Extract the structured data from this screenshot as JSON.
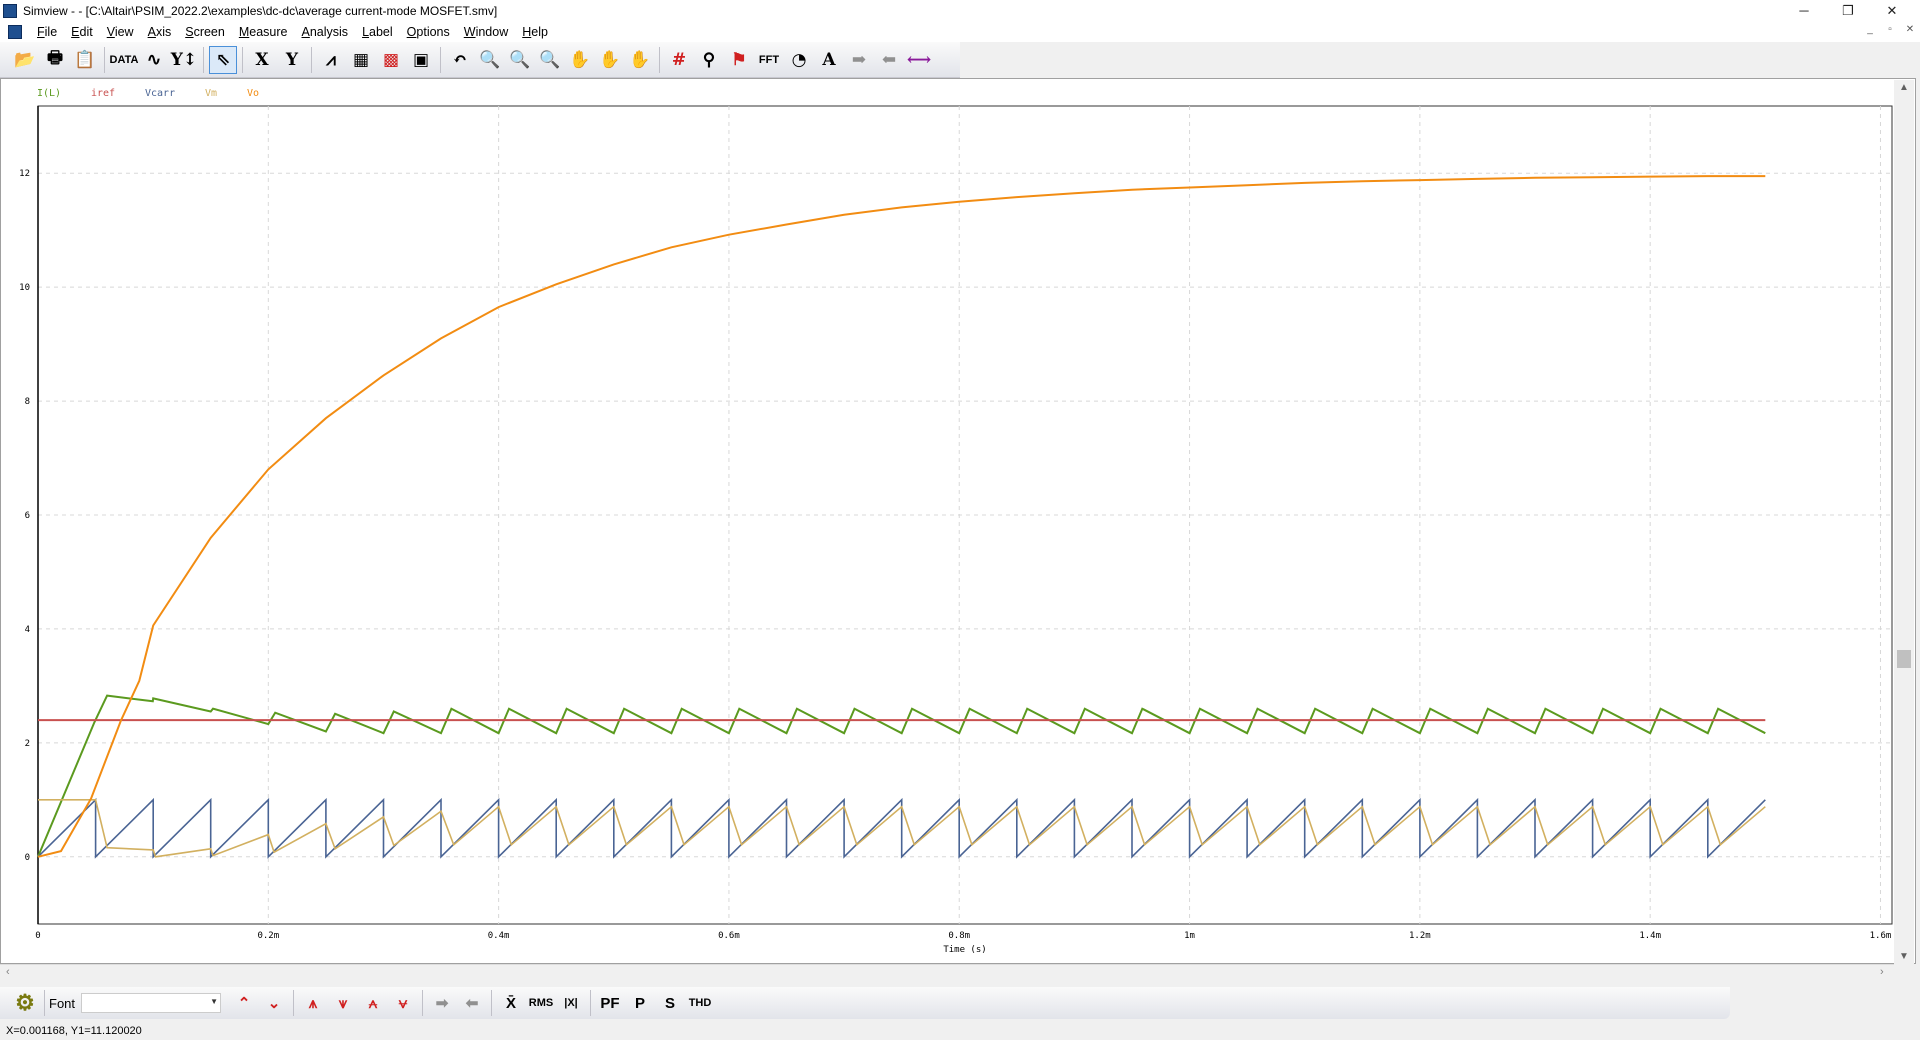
{
  "window": {
    "title": "Simview -  - [C:\\Altair\\PSIM_2022.2\\examples\\dc-dc\\average current-mode MOSFET.smv]",
    "minimize": "─",
    "restore": "❐",
    "close": "✕"
  },
  "menu": [
    "File",
    "Edit",
    "View",
    "Axis",
    "Screen",
    "Measure",
    "Analysis",
    "Label",
    "Options",
    "Window",
    "Help"
  ],
  "toolbar": [
    {
      "icon": "open-folder-icon",
      "glyph": "📂"
    },
    {
      "icon": "print-icon",
      "glyph": "🖶"
    },
    {
      "icon": "copy-clipboard-icon",
      "glyph": "📋"
    },
    {
      "sep": true
    },
    {
      "icon": "data-icon",
      "glyph": "DATA"
    },
    {
      "icon": "add-curve-icon",
      "glyph": "∿"
    },
    {
      "icon": "y-axis-range-icon",
      "glyph": "Y↕"
    },
    {
      "sep": true
    },
    {
      "icon": "select-pointer-icon",
      "glyph": "⇖",
      "selected": true
    },
    {
      "sep": true
    },
    {
      "icon": "x-axis-icon",
      "glyph": "X"
    },
    {
      "icon": "y-axis-icon",
      "glyph": "Y"
    },
    {
      "sep": true
    },
    {
      "icon": "fft-curve-icon",
      "glyph": "⩘"
    },
    {
      "icon": "add-screen-icon",
      "glyph": "▦"
    },
    {
      "icon": "screen-grid-icon",
      "glyph": "▩"
    },
    {
      "icon": "screen-copy-icon",
      "glyph": "▣"
    },
    {
      "sep": true
    },
    {
      "icon": "undo-icon",
      "glyph": "↶"
    },
    {
      "icon": "zoom-icon",
      "glyph": "🔍"
    },
    {
      "icon": "zoom-in-icon",
      "glyph": "🔍"
    },
    {
      "icon": "zoom-out-icon",
      "glyph": "🔍"
    },
    {
      "icon": "pan-hand-icon",
      "glyph": "✋"
    },
    {
      "icon": "pan-hand-vertical-icon",
      "glyph": "✋"
    },
    {
      "icon": "hand-icon",
      "glyph": "✋"
    },
    {
      "sep": true
    },
    {
      "icon": "grid-icon",
      "glyph": "#"
    },
    {
      "icon": "measure-icon",
      "glyph": "⚲"
    },
    {
      "icon": "measure-marker-icon",
      "glyph": "⚑"
    },
    {
      "icon": "fft-icon",
      "glyph": "FFT"
    },
    {
      "icon": "clock-icon",
      "glyph": "◔"
    },
    {
      "icon": "text-label-icon",
      "glyph": "A"
    },
    {
      "icon": "arrow-right-icon",
      "glyph": "➡"
    },
    {
      "icon": "arrow-left-icon",
      "glyph": "⬅"
    },
    {
      "icon": "double-arrow-icon",
      "glyph": "⟷"
    }
  ],
  "bottom_toolbar": {
    "font_label": "Font",
    "font_value": "",
    "tools": [
      {
        "icon": "max-marker-icon",
        "glyph": "⌃"
      },
      {
        "icon": "min-marker-icon",
        "glyph": "⌄"
      },
      {
        "sep": true
      },
      {
        "icon": "global-max-icon",
        "glyph": "⩚"
      },
      {
        "icon": "local-max-icon",
        "glyph": "⩛"
      },
      {
        "icon": "global-min-icon",
        "glyph": "⩜"
      },
      {
        "icon": "local-min-icon",
        "glyph": "⩝"
      },
      {
        "sep": true
      },
      {
        "icon": "next-arrow-icon",
        "glyph": "➡"
      },
      {
        "icon": "prev-arrow-icon",
        "glyph": "⬅"
      },
      {
        "sep": true
      },
      {
        "icon": "average-icon",
        "glyph": "X̄"
      },
      {
        "icon": "rms-icon",
        "glyph": "RMS"
      },
      {
        "icon": "abs-average-icon",
        "glyph": "|X|"
      },
      {
        "sep": true
      },
      {
        "icon": "power-factor-icon",
        "glyph": "PF"
      },
      {
        "icon": "real-power-icon",
        "glyph": "P"
      },
      {
        "icon": "apparent-power-icon",
        "glyph": "S"
      },
      {
        "icon": "thd-icon",
        "glyph": "THD"
      }
    ]
  },
  "status": "X=0.001168, Y1=11.120020",
  "chart_data": {
    "type": "line",
    "xlabel": "Time (s)",
    "ylabel": "",
    "xlim": [
      0,
      0.00161
    ],
    "ylim": [
      -1.18,
      13.18
    ],
    "grid": true,
    "legend_placement": "top-left",
    "xticks": [
      {
        "v": 0,
        "label": "0"
      },
      {
        "v": 0.0002,
        "label": "0.2m"
      },
      {
        "v": 0.0004,
        "label": "0.4m"
      },
      {
        "v": 0.0006,
        "label": "0.6m"
      },
      {
        "v": 0.0008,
        "label": "0.8m"
      },
      {
        "v": 0.001,
        "label": "1m"
      },
      {
        "v": 0.0012,
        "label": "1.2m"
      },
      {
        "v": 0.0014,
        "label": "1.4m"
      },
      {
        "v": 0.0016,
        "label": "1.6m"
      }
    ],
    "yticks": [
      {
        "v": 0,
        "label": "0"
      },
      {
        "v": 2,
        "label": "2"
      },
      {
        "v": 4,
        "label": "4"
      },
      {
        "v": 6,
        "label": "6"
      },
      {
        "v": 8,
        "label": "8"
      },
      {
        "v": 10,
        "label": "10"
      },
      {
        "v": 12,
        "label": "12"
      }
    ],
    "series": [
      {
        "name": "I(L)",
        "color": "#5b9a1f",
        "points": [
          [
            0,
            0
          ],
          [
            4.9e-05,
            2.36
          ],
          [
            6e-05,
            2.83
          ],
          [
            9.97e-05,
            2.73
          ],
          [
            0.0001,
            2.78
          ],
          [
            0.00015,
            2.55
          ],
          [
            0.000152,
            2.6
          ],
          [
            0.0002,
            2.33
          ],
          [
            0.000206,
            2.53
          ],
          [
            0.00025,
            2.2
          ],
          [
            0.000258,
            2.51
          ],
          [
            0.0003,
            2.17
          ],
          [
            0.000309,
            2.55
          ],
          [
            0.00035,
            2.17
          ],
          [
            0.000359,
            2.6
          ],
          [
            0.0004,
            2.17
          ],
          [
            0.000409,
            2.6
          ],
          [
            0.00045,
            2.17
          ],
          [
            0.000459,
            2.6
          ],
          [
            0.0005,
            2.17
          ],
          [
            0.000509,
            2.6
          ],
          [
            0.00055,
            2.17
          ],
          [
            0.000559,
            2.6
          ],
          [
            0.0006,
            2.17
          ],
          [
            0.000609,
            2.6
          ],
          [
            0.00065,
            2.17
          ],
          [
            0.000659,
            2.6
          ],
          [
            0.0007,
            2.17
          ],
          [
            0.000709,
            2.6
          ],
          [
            0.00075,
            2.17
          ],
          [
            0.000759,
            2.6
          ],
          [
            0.0008,
            2.17
          ],
          [
            0.000809,
            2.6
          ],
          [
            0.00085,
            2.17
          ],
          [
            0.000859,
            2.6
          ],
          [
            0.0009,
            2.17
          ],
          [
            0.000909,
            2.6
          ],
          [
            0.00095,
            2.17
          ],
          [
            0.000959,
            2.6
          ],
          [
            0.001,
            2.17
          ],
          [
            0.001009,
            2.6
          ],
          [
            0.00105,
            2.17
          ],
          [
            0.001059,
            2.6
          ],
          [
            0.0011,
            2.17
          ],
          [
            0.001109,
            2.6
          ],
          [
            0.00115,
            2.17
          ],
          [
            0.001159,
            2.6
          ],
          [
            0.0012,
            2.17
          ],
          [
            0.001209,
            2.6
          ],
          [
            0.00125,
            2.17
          ],
          [
            0.001259,
            2.6
          ],
          [
            0.0013,
            2.17
          ],
          [
            0.001309,
            2.6
          ],
          [
            0.00135,
            2.17
          ],
          [
            0.001359,
            2.6
          ],
          [
            0.0014,
            2.17
          ],
          [
            0.001409,
            2.6
          ],
          [
            0.00145,
            2.17
          ],
          [
            0.001459,
            2.6
          ],
          [
            0.0015,
            2.17
          ]
        ]
      },
      {
        "name": "iref",
        "color": "#c8504f",
        "points": [
          [
            0,
            2.4
          ],
          [
            0.0015,
            2.4
          ]
        ]
      },
      {
        "name": "Vcarr",
        "color": "#4a6494",
        "points": [
          [
            0,
            0
          ],
          [
            5e-05,
            1
          ],
          [
            5e-05,
            0
          ],
          [
            0.0001,
            1
          ],
          [
            0.0001,
            0
          ],
          [
            0.00015,
            1
          ],
          [
            0.00015,
            0
          ],
          [
            0.0002,
            1
          ],
          [
            0.0002,
            0
          ],
          [
            0.00025,
            1
          ],
          [
            0.00025,
            0
          ],
          [
            0.0003,
            1
          ],
          [
            0.0003,
            0
          ],
          [
            0.00035,
            1
          ],
          [
            0.00035,
            0
          ],
          [
            0.0004,
            1
          ],
          [
            0.0004,
            0
          ],
          [
            0.00045,
            1
          ],
          [
            0.00045,
            0
          ],
          [
            0.0005,
            1
          ],
          [
            0.0005,
            0
          ],
          [
            0.00055,
            1
          ],
          [
            0.00055,
            0
          ],
          [
            0.0006,
            1
          ],
          [
            0.0006,
            0
          ],
          [
            0.00065,
            1
          ],
          [
            0.00065,
            0
          ],
          [
            0.0007,
            1
          ],
          [
            0.0007,
            0
          ],
          [
            0.00075,
            1
          ],
          [
            0.00075,
            0
          ],
          [
            0.0008,
            1
          ],
          [
            0.0008,
            0
          ],
          [
            0.00085,
            1
          ],
          [
            0.00085,
            0
          ],
          [
            0.0009,
            1
          ],
          [
            0.0009,
            0
          ],
          [
            0.00095,
            1
          ],
          [
            0.00095,
            0
          ],
          [
            0.001,
            1
          ],
          [
            0.001,
            0
          ],
          [
            0.00105,
            1
          ],
          [
            0.00105,
            0
          ],
          [
            0.0011,
            1
          ],
          [
            0.0011,
            0
          ],
          [
            0.00115,
            1
          ],
          [
            0.00115,
            0
          ],
          [
            0.0012,
            1
          ],
          [
            0.0012,
            0
          ],
          [
            0.00125,
            1
          ],
          [
            0.00125,
            0
          ],
          [
            0.0013,
            1
          ],
          [
            0.0013,
            0
          ],
          [
            0.00135,
            1
          ],
          [
            0.00135,
            0
          ],
          [
            0.0014,
            1
          ],
          [
            0.0014,
            0
          ],
          [
            0.00145,
            1
          ],
          [
            0.00145,
            0
          ],
          [
            0.0015,
            1
          ]
        ]
      },
      {
        "name": "Vm",
        "color": "#d2b060",
        "points": [
          [
            0,
            1
          ],
          [
            5e-05,
            1
          ],
          [
            6e-05,
            0.16
          ],
          [
            0.0001,
            0.12
          ],
          [
            0.000102,
            0
          ],
          [
            0.00015,
            0.14
          ],
          [
            0.000152,
            0.02
          ],
          [
            0.0002,
            0.39
          ],
          [
            0.000205,
            0.08
          ],
          [
            0.00025,
            0.58
          ],
          [
            0.000258,
            0.14
          ],
          [
            0.0003,
            0.7
          ],
          [
            0.000309,
            0.2
          ],
          [
            0.00035,
            0.8
          ],
          [
            0.000361,
            0.21
          ],
          [
            0.0004,
            0.88
          ],
          [
            0.000411,
            0.21
          ],
          [
            0.00045,
            0.88
          ],
          [
            0.000461,
            0.21
          ],
          [
            0.0005,
            0.88
          ],
          [
            0.000511,
            0.21
          ],
          [
            0.00055,
            0.88
          ],
          [
            0.000561,
            0.21
          ],
          [
            0.0006,
            0.88
          ],
          [
            0.000611,
            0.21
          ],
          [
            0.00065,
            0.88
          ],
          [
            0.000661,
            0.21
          ],
          [
            0.0007,
            0.88
          ],
          [
            0.000711,
            0.21
          ],
          [
            0.00075,
            0.88
          ],
          [
            0.000761,
            0.21
          ],
          [
            0.0008,
            0.88
          ],
          [
            0.000811,
            0.21
          ],
          [
            0.00085,
            0.88
          ],
          [
            0.000861,
            0.21
          ],
          [
            0.0009,
            0.88
          ],
          [
            0.000911,
            0.21
          ],
          [
            0.00095,
            0.88
          ],
          [
            0.000961,
            0.21
          ],
          [
            0.001,
            0.88
          ],
          [
            0.001011,
            0.21
          ],
          [
            0.00105,
            0.88
          ],
          [
            0.001061,
            0.21
          ],
          [
            0.0011,
            0.88
          ],
          [
            0.001111,
            0.21
          ],
          [
            0.00115,
            0.88
          ],
          [
            0.001161,
            0.21
          ],
          [
            0.0012,
            0.88
          ],
          [
            0.001211,
            0.21
          ],
          [
            0.00125,
            0.88
          ],
          [
            0.001261,
            0.21
          ],
          [
            0.0013,
            0.88
          ],
          [
            0.001311,
            0.21
          ],
          [
            0.00135,
            0.88
          ],
          [
            0.001361,
            0.21
          ],
          [
            0.0014,
            0.88
          ],
          [
            0.001411,
            0.21
          ],
          [
            0.00145,
            0.88
          ],
          [
            0.001461,
            0.21
          ],
          [
            0.0015,
            0.88
          ]
        ]
      },
      {
        "name": "Vo",
        "color": "#f28c12",
        "points": [
          [
            0,
            0
          ],
          [
            2e-05,
            0.1
          ],
          [
            4.6e-05,
            1.02
          ],
          [
            7.2e-05,
            2.39
          ],
          [
            8.8e-05,
            3.09
          ],
          [
            0.0001,
            4.06
          ],
          [
            0.00015,
            5.6
          ],
          [
            0.0002,
            6.8
          ],
          [
            0.00025,
            7.7
          ],
          [
            0.0003,
            8.45
          ],
          [
            0.00035,
            9.1
          ],
          [
            0.0004,
            9.65
          ],
          [
            0.00045,
            10.05
          ],
          [
            0.0005,
            10.4
          ],
          [
            0.00055,
            10.7
          ],
          [
            0.0006,
            10.92
          ],
          [
            0.00065,
            11.1
          ],
          [
            0.0007,
            11.27
          ],
          [
            0.00075,
            11.4
          ],
          [
            0.0008,
            11.5
          ],
          [
            0.00085,
            11.58
          ],
          [
            0.0009,
            11.65
          ],
          [
            0.00095,
            11.71
          ],
          [
            0.001,
            11.75
          ],
          [
            0.00105,
            11.79
          ],
          [
            0.0011,
            11.83
          ],
          [
            0.00115,
            11.86
          ],
          [
            0.0012,
            11.88
          ],
          [
            0.00125,
            11.9
          ],
          [
            0.0013,
            11.92
          ],
          [
            0.00135,
            11.93
          ],
          [
            0.0014,
            11.94
          ],
          [
            0.00145,
            11.95
          ],
          [
            0.0015,
            11.95
          ]
        ]
      }
    ]
  }
}
